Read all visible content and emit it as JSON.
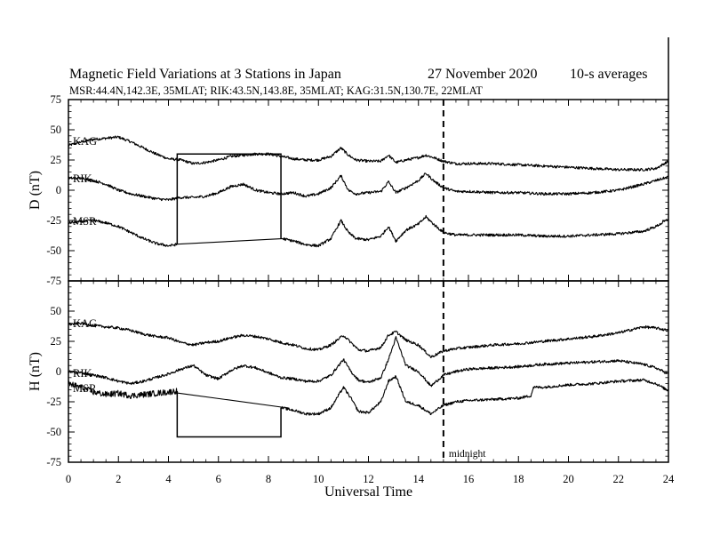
{
  "figure": {
    "title": "Magnetic Field Variations at 3 Stations in Japan",
    "date": "27 November 2020",
    "averaging": "10-s averages",
    "subtitle": "MSR:44.4N,142.3E, 35MLAT;  RIK:43.5N,143.8E, 35MLAT;  KAG:31.5N,130.7E, 22MLAT",
    "midnight_label": "midnight"
  },
  "chart_data": [
    {
      "type": "line",
      "panel": "D",
      "title": "",
      "xlabel": "Universal Time",
      "ylabel": "D (nT)",
      "xlim": [
        0,
        24
      ],
      "ylim": [
        -75,
        75
      ],
      "x_ticks": [
        0,
        2,
        4,
        6,
        8,
        10,
        12,
        14,
        16,
        18,
        20,
        22,
        24
      ],
      "y_ticks": [
        -75,
        -50,
        -25,
        0,
        25,
        50,
        75
      ],
      "grid": false,
      "annotations": [
        {
          "type": "vertical-dashed-line",
          "x": 15,
          "label": "midnight"
        },
        {
          "type": "data-gap",
          "series": "MSR",
          "x_range": [
            4.35,
            8.5
          ],
          "y": 30
        }
      ],
      "series": [
        {
          "name": "KAG",
          "x": [
            0,
            0.5,
            1,
            1.5,
            2,
            2.5,
            3,
            3.5,
            4,
            4.5,
            5,
            5.5,
            6,
            6.5,
            7,
            7.5,
            8,
            8.5,
            9,
            9.5,
            10,
            10.5,
            10.9,
            11.2,
            11.5,
            12,
            12.5,
            12.8,
            13.1,
            13.5,
            14,
            14.3,
            14.6,
            15,
            15.5,
            16,
            17,
            18,
            19,
            20,
            21,
            22,
            23,
            23.5,
            24
          ],
          "y": [
            37,
            40,
            42,
            43,
            44,
            40,
            35,
            30,
            26,
            25,
            22,
            23,
            25,
            28,
            29,
            30,
            30,
            28,
            26,
            25,
            25,
            28,
            35,
            29,
            25,
            24,
            24,
            29,
            23,
            25,
            27,
            29,
            27,
            24,
            22,
            22,
            22,
            21,
            20,
            19,
            18,
            17,
            17,
            18,
            24
          ]
        },
        {
          "name": "RIK",
          "x": [
            0,
            0.5,
            1,
            1.5,
            2,
            2.5,
            3,
            3.5,
            4,
            4.5,
            5,
            5.5,
            6,
            6.5,
            7,
            7.5,
            8,
            8.5,
            9,
            9.5,
            10,
            10.5,
            10.9,
            11.2,
            11.5,
            12,
            12.5,
            12.8,
            13.1,
            13.5,
            14,
            14.3,
            14.6,
            15,
            15.5,
            16,
            17,
            18,
            19,
            20,
            21,
            22,
            23,
            23.5,
            24
          ],
          "y": [
            10,
            10,
            8,
            5,
            0,
            -3,
            -5,
            -7,
            -8,
            -6,
            -6,
            -5,
            -2,
            3,
            5,
            0,
            -2,
            -3,
            -2,
            -5,
            -3,
            2,
            12,
            0,
            -3,
            -2,
            -1,
            7,
            -2,
            2,
            8,
            14,
            8,
            2,
            -1,
            -1,
            -2,
            -2,
            -3,
            -3,
            -2,
            0,
            5,
            8,
            11
          ]
        },
        {
          "name": "MSR",
          "x": [
            0,
            0.5,
            1,
            1.5,
            2,
            2.5,
            3,
            3.5,
            4,
            4.3,
            8.55,
            9,
            9.5,
            10,
            10.5,
            10.9,
            11.2,
            11.5,
            12,
            12.5,
            12.8,
            13.1,
            13.5,
            14,
            14.3,
            14.6,
            15,
            15.5,
            16,
            17,
            18,
            19,
            20,
            21,
            22,
            23,
            23.5,
            24
          ],
          "y": [
            -27,
            -26,
            -25,
            -27,
            -30,
            -35,
            -40,
            -44,
            -46,
            -45,
            -40,
            -42,
            -45,
            -46,
            -40,
            -25,
            -35,
            -40,
            -41,
            -38,
            -30,
            -42,
            -33,
            -28,
            -22,
            -28,
            -35,
            -37,
            -37,
            -37,
            -37,
            -38,
            -38,
            -37,
            -36,
            -34,
            -30,
            -24
          ]
        }
      ]
    },
    {
      "type": "line",
      "panel": "H",
      "title": "",
      "xlabel": "Universal Time",
      "ylabel": "H (nT)",
      "xlim": [
        0,
        24
      ],
      "ylim": [
        -75,
        75
      ],
      "x_ticks": [
        0,
        2,
        4,
        6,
        8,
        10,
        12,
        14,
        16,
        18,
        20,
        22,
        24
      ],
      "y_ticks": [
        -75,
        -50,
        -25,
        0,
        25,
        50,
        75
      ],
      "grid": false,
      "annotations": [
        {
          "type": "vertical-dashed-line",
          "x": 15,
          "label": "midnight"
        },
        {
          "type": "data-gap",
          "series": "MSR",
          "x_range": [
            4.35,
            8.5
          ],
          "y": -54
        }
      ],
      "series": [
        {
          "name": "KAG",
          "x": [
            0,
            0.5,
            1,
            1.5,
            2,
            2.5,
            3,
            3.5,
            4,
            4.5,
            5,
            5.5,
            6,
            6.5,
            7,
            7.5,
            8,
            8.5,
            9,
            9.5,
            10,
            10.5,
            11,
            11.3,
            11.6,
            12,
            12.5,
            12.8,
            13.1,
            13.5,
            14,
            14.5,
            15,
            15.5,
            16,
            17,
            18,
            19,
            20,
            21,
            22,
            23,
            23.5,
            24
          ],
          "y": [
            39,
            40,
            38,
            37,
            36,
            34,
            31,
            29,
            28,
            24,
            22,
            24,
            25,
            28,
            30,
            29,
            27,
            24,
            22,
            19,
            18,
            22,
            30,
            24,
            18,
            17,
            20,
            30,
            33,
            26,
            22,
            12,
            17,
            19,
            20,
            22,
            23,
            25,
            27,
            29,
            32,
            37,
            36,
            34
          ]
        },
        {
          "name": "RIK",
          "x": [
            0,
            0.5,
            1,
            1.5,
            2,
            2.5,
            3,
            3.5,
            4,
            4.5,
            5,
            5.5,
            6,
            6.5,
            7,
            7.5,
            8,
            8.5,
            9,
            9.5,
            10,
            10.5,
            11,
            11.3,
            11.6,
            12,
            12.5,
            12.8,
            13.1,
            13.5,
            14,
            14.5,
            15,
            15.5,
            16,
            17,
            18,
            19,
            20,
            21,
            22,
            23,
            23.5,
            24
          ],
          "y": [
            0,
            -1,
            -3,
            -5,
            -8,
            -10,
            -8,
            -5,
            -2,
            2,
            5,
            -3,
            -6,
            1,
            5,
            3,
            -1,
            -5,
            -6,
            -8,
            -8,
            -3,
            10,
            0,
            -7,
            -9,
            -5,
            10,
            28,
            5,
            0,
            -12,
            -3,
            0,
            2,
            3,
            4,
            6,
            7,
            8,
            9,
            6,
            3,
            -2
          ]
        },
        {
          "name": "MSR",
          "x": [
            0,
            0.5,
            1,
            1.5,
            2,
            2.5,
            3,
            3.5,
            4,
            4.3,
            8.55,
            9,
            9.5,
            10,
            10.5,
            11,
            11.3,
            11.6,
            12,
            12.5,
            12.8,
            13.1,
            13.5,
            14,
            14.5,
            15,
            15.5,
            16,
            17,
            18,
            18.5,
            18.6,
            19,
            20,
            21,
            22,
            23,
            23.5,
            24
          ],
          "y": [
            -10,
            -13,
            -17,
            -19,
            -18,
            -20,
            -19,
            -18,
            -17,
            -16,
            -30,
            -32,
            -35,
            -35,
            -30,
            -13,
            -22,
            -33,
            -34,
            -25,
            -8,
            -4,
            -25,
            -28,
            -35,
            -28,
            -25,
            -24,
            -23,
            -22,
            -20,
            -13,
            -13,
            -11,
            -10,
            -8,
            -7,
            -10,
            -16
          ]
        }
      ]
    }
  ]
}
